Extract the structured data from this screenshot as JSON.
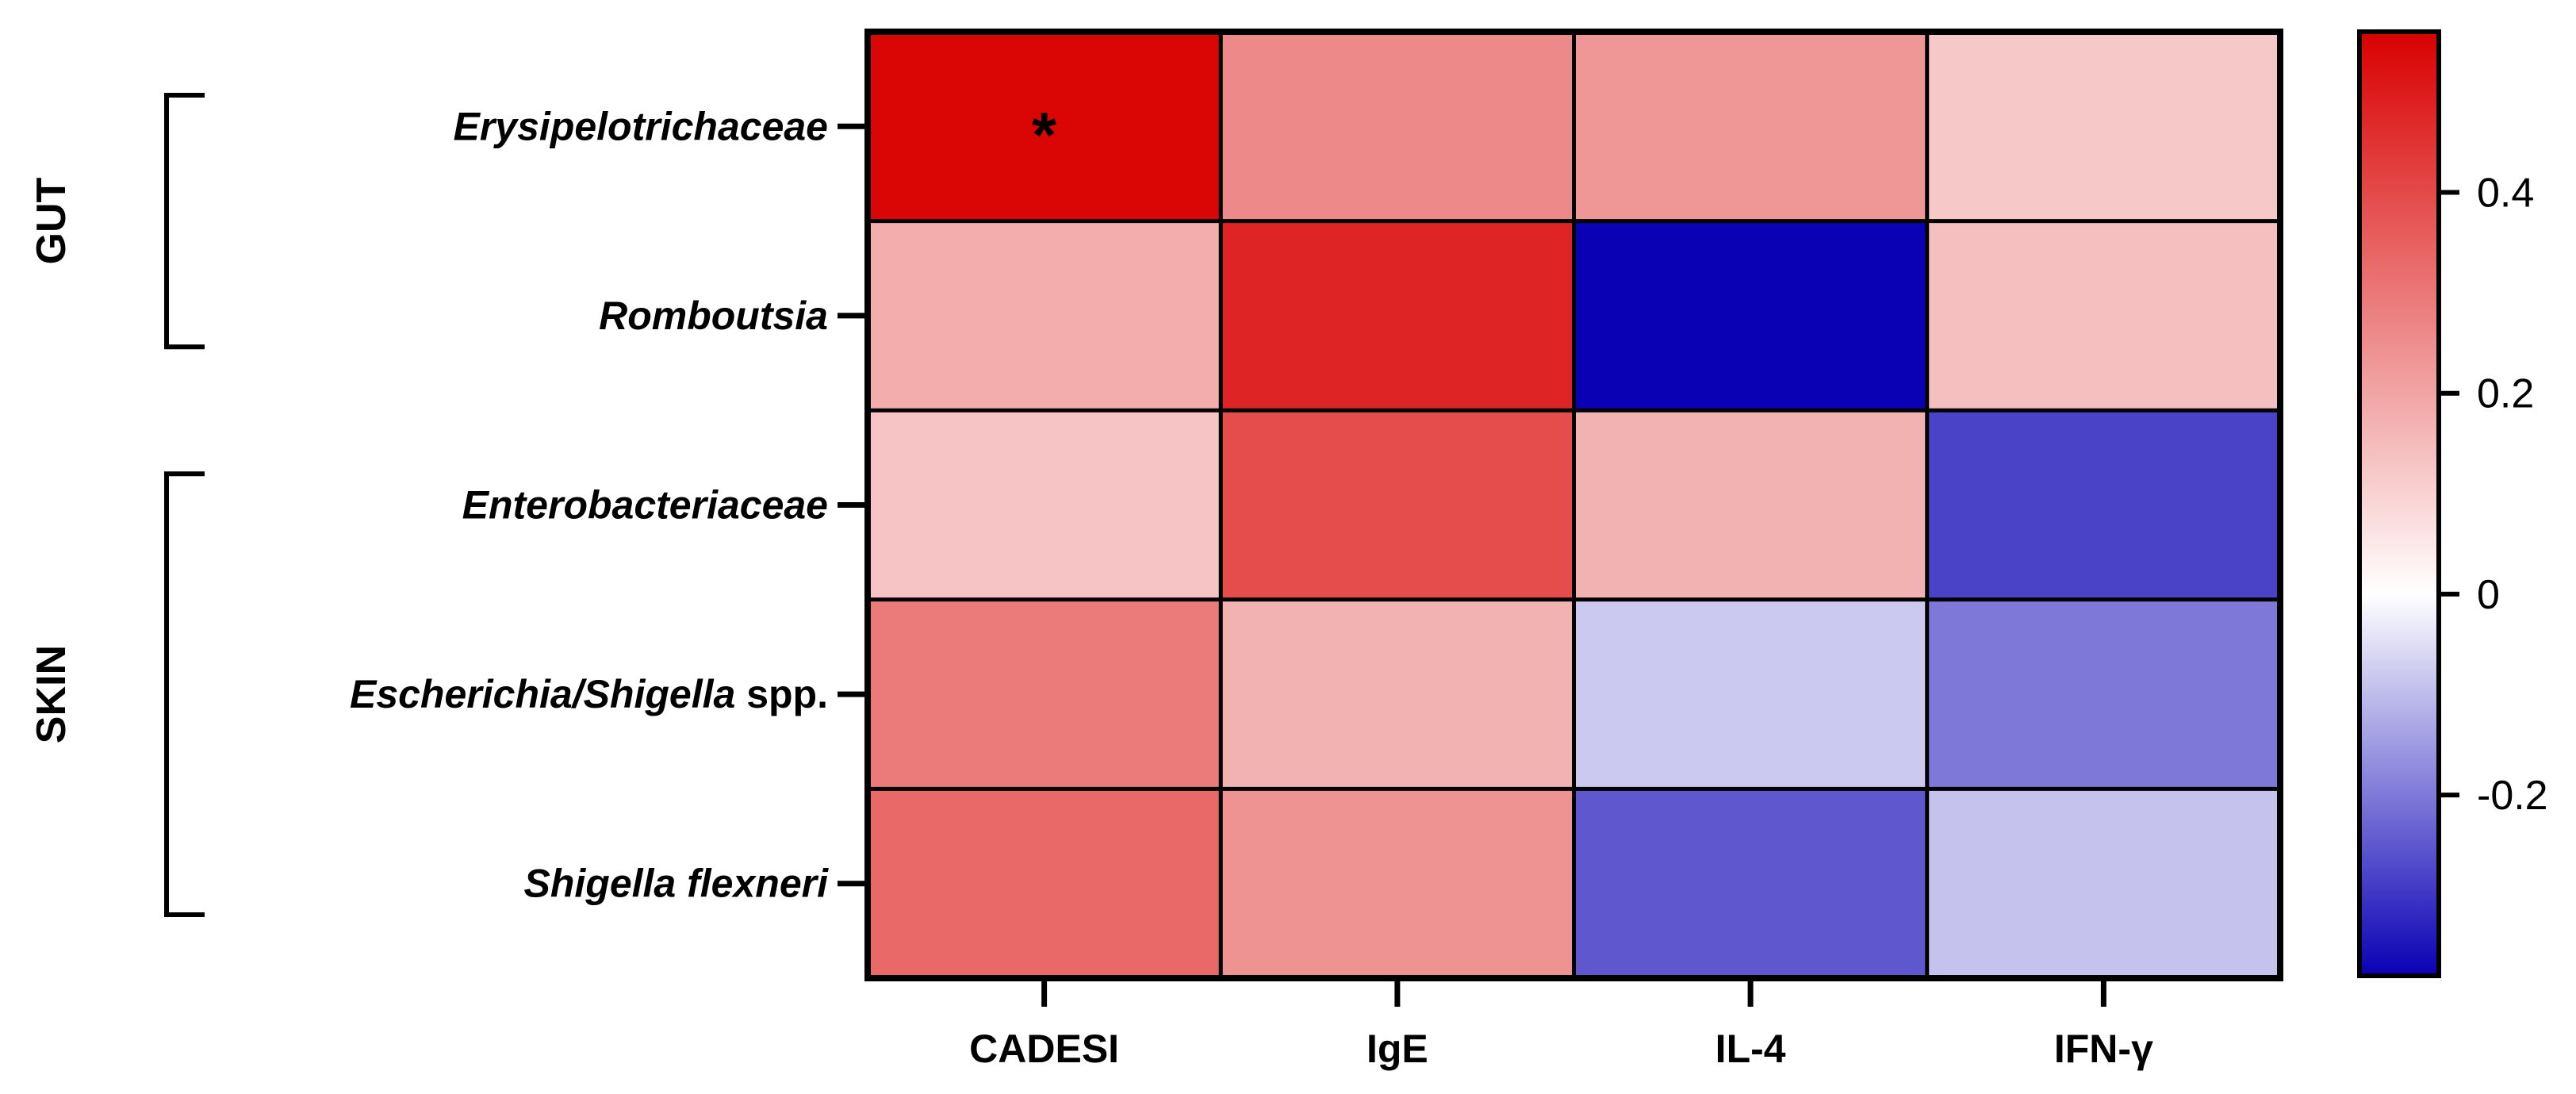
{
  "chart_data": {
    "type": "heatmap",
    "columns": [
      "CADESI",
      "IgE",
      "IL-4",
      "IFN-γ"
    ],
    "rows": [
      {
        "label": "Erysipelotrichaceae",
        "suffix": ""
      },
      {
        "label": "Romboutsia",
        "suffix": ""
      },
      {
        "label": "Enterobacteriaceae",
        "suffix": ""
      },
      {
        "label": "Escherichia/Shigella",
        "suffix": " spp."
      },
      {
        "label": "Shigella flexneri",
        "suffix": ""
      }
    ],
    "values": [
      [
        0.55,
        0.26,
        0.23,
        0.12
      ],
      [
        0.18,
        0.48,
        -0.38,
        0.14
      ],
      [
        0.13,
        0.39,
        0.17,
        -0.28
      ],
      [
        0.29,
        0.17,
        -0.08,
        -0.2
      ],
      [
        0.33,
        0.24,
        -0.25,
        -0.09
      ]
    ],
    "annotations": [
      {
        "row": 0,
        "col": 0,
        "text": "*"
      }
    ],
    "groups": [
      {
        "label": "GUT",
        "rows": [
          0,
          1
        ]
      },
      {
        "label": "SKIN",
        "rows": [
          2,
          4
        ]
      }
    ],
    "colorbar": {
      "min": -0.38,
      "max": 0.56,
      "ticks": [
        0.4,
        0.2,
        0,
        -0.2
      ],
      "tick_labels": [
        "0.4",
        "0.2",
        "0",
        "-0.2"
      ],
      "colors": {
        "negative": "#0a00b4",
        "zero": "#ffffff",
        "positive": "#d90000"
      }
    }
  }
}
